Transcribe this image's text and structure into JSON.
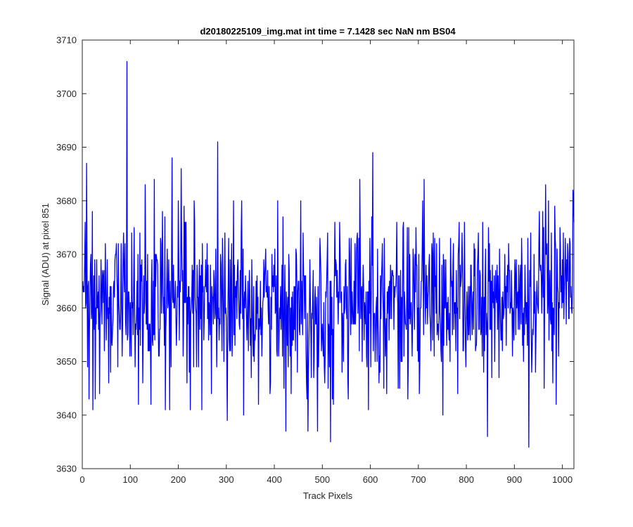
{
  "chart_data": {
    "type": "line",
    "title": "d20180225109_img.mat int time = 7.1428 sec  NaN nm BS04",
    "xlabel": "Track Pixels",
    "ylabel": "Signal (ADU) at pixel 851",
    "xlim": [
      0,
      1024
    ],
    "ylim": [
      3630,
      3710
    ],
    "xticks": [
      0,
      100,
      200,
      300,
      400,
      500,
      600,
      700,
      800,
      900,
      1000
    ],
    "yticks": [
      3630,
      3640,
      3650,
      3660,
      3670,
      3680,
      3690,
      3700,
      3710
    ],
    "grid": false,
    "box": true,
    "series": [
      {
        "color": "#0000ff",
        "n_points": 1024,
        "baseline_mean": 3661,
        "baseline_std": 7.5,
        "x_start": 1,
        "x_step": 1,
        "peaks": [
          [
            9,
            3687
          ],
          [
            93,
            3706
          ],
          [
            131,
            3683
          ],
          [
            150,
            3684
          ],
          [
            187,
            3688
          ],
          [
            206,
            3686
          ],
          [
            282,
            3691
          ],
          [
            578,
            3684
          ],
          [
            605,
            3689
          ],
          [
            712,
            3684
          ],
          [
            965,
            3683
          ],
          [
            1022,
            3682
          ]
        ],
        "dips": [
          [
            14,
            3643
          ],
          [
            22,
            3641
          ],
          [
            117,
            3642
          ],
          [
            173,
            3641
          ],
          [
            225,
            3641
          ],
          [
            249,
            3641
          ],
          [
            302,
            3639
          ],
          [
            424,
            3637
          ],
          [
            470,
            3637
          ],
          [
            490,
            3637
          ],
          [
            517,
            3635
          ],
          [
            844,
            3636
          ],
          [
            930,
            3634
          ],
          [
            987,
            3642
          ]
        ]
      }
    ]
  }
}
